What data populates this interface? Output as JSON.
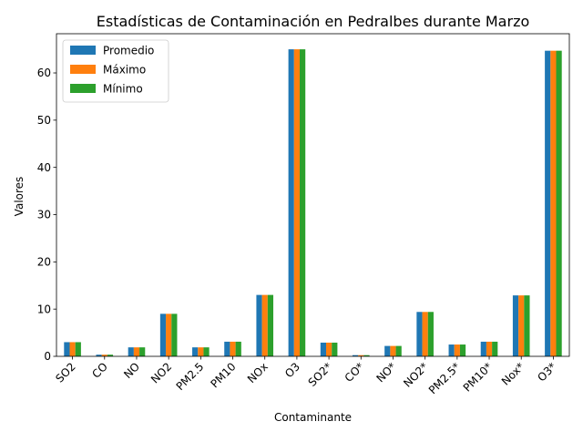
{
  "chart_data": {
    "type": "bar",
    "title": "Estadísticas de Contaminación en Pedralbes durante Marzo",
    "xlabel": "Contaminante",
    "ylabel": "Valores",
    "ylim": [
      0,
      68.3
    ],
    "yticks": [
      0,
      10,
      20,
      30,
      40,
      50,
      60
    ],
    "grid": false,
    "legend_position": "top-left",
    "categories": [
      "SO2",
      "CO",
      "NO",
      "NO2",
      "PM2.5",
      "PM10",
      "NOx",
      "O3",
      "SO2*",
      "CO*",
      "NO*",
      "NO2*",
      "PM2.5*",
      "PM10*",
      "Nox*",
      "O3*"
    ],
    "series": [
      {
        "name": "Promedio",
        "color": "#1f77b4",
        "values": [
          3.0,
          0.35,
          1.9,
          9.0,
          1.9,
          3.1,
          13.0,
          65.0,
          2.9,
          0.25,
          2.2,
          9.4,
          2.5,
          3.1,
          12.9,
          64.7
        ]
      },
      {
        "name": "Máximo",
        "color": "#ff7f0e",
        "values": [
          3.0,
          0.35,
          1.9,
          9.0,
          1.9,
          3.1,
          13.0,
          65.0,
          2.9,
          0.25,
          2.2,
          9.4,
          2.5,
          3.1,
          12.9,
          64.7
        ]
      },
      {
        "name": "Mínimo",
        "color": "#2ca02c",
        "values": [
          3.0,
          0.35,
          1.9,
          9.0,
          1.9,
          3.1,
          13.0,
          65.0,
          2.9,
          0.25,
          2.2,
          9.4,
          2.5,
          3.1,
          12.9,
          64.7
        ]
      }
    ]
  }
}
